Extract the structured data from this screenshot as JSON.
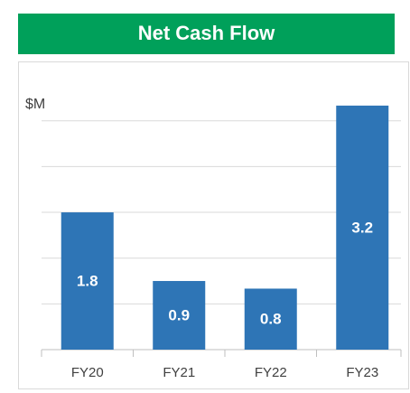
{
  "chart_data": {
    "type": "bar",
    "title": "Net Cash Flow",
    "y_label": "$M",
    "categories": [
      "FY20",
      "FY21",
      "FY22",
      "FY23"
    ],
    "values": [
      1.8,
      0.9,
      0.8,
      3.2
    ],
    "color": "#2e75b6",
    "ylim": [
      0,
      3.4
    ],
    "yticks": [
      0,
      0.6,
      1.2,
      1.8,
      2.4,
      3.0
    ],
    "grid": true,
    "tick_labels": false
  }
}
